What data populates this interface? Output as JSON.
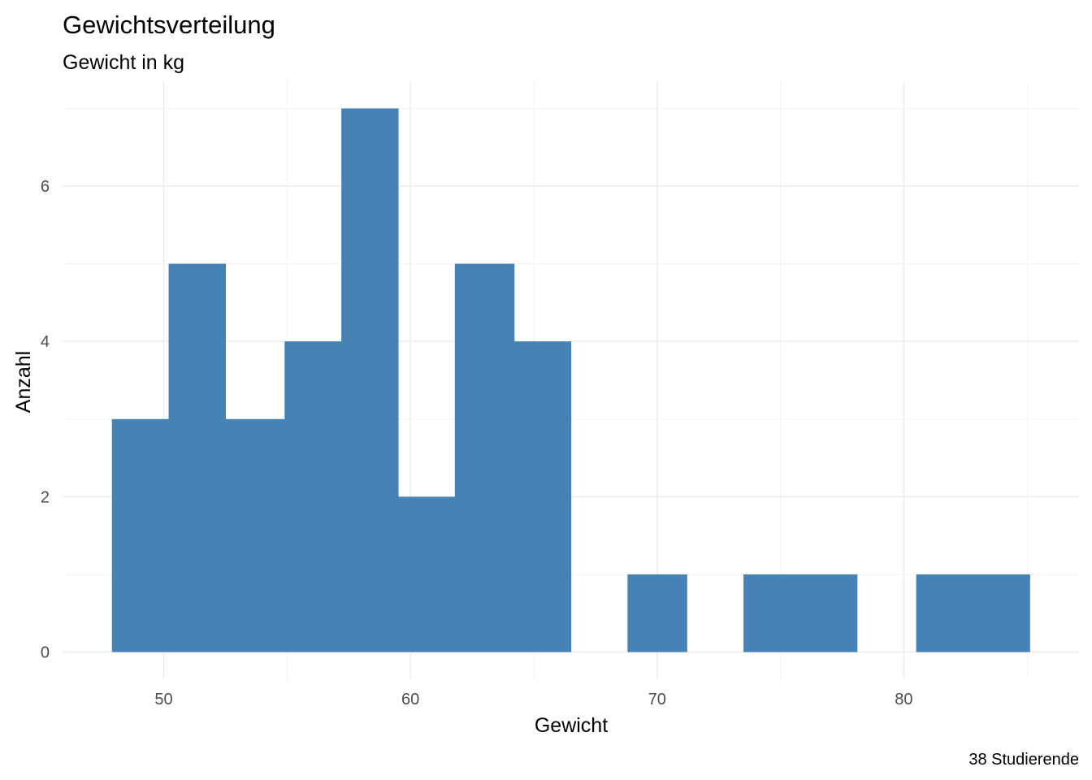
{
  "chart_data": {
    "type": "bar",
    "subtype": "histogram",
    "title": "Gewichtsverteilung",
    "subtitle": "Gewicht in kg",
    "xlabel": "Gewicht",
    "ylabel": "Anzahl",
    "caption": "38 Studierende",
    "bins": [
      {
        "x0": 47.9,
        "x1": 50.2,
        "count": 3
      },
      {
        "x0": 50.2,
        "x1": 52.5,
        "count": 5
      },
      {
        "x0": 52.5,
        "x1": 54.9,
        "count": 3
      },
      {
        "x0": 54.9,
        "x1": 57.2,
        "count": 4
      },
      {
        "x0": 57.2,
        "x1": 59.5,
        "count": 7
      },
      {
        "x0": 59.5,
        "x1": 61.8,
        "count": 2
      },
      {
        "x0": 61.8,
        "x1": 64.2,
        "count": 5
      },
      {
        "x0": 64.2,
        "x1": 66.5,
        "count": 4
      },
      {
        "x0": 66.5,
        "x1": 68.8,
        "count": 0
      },
      {
        "x0": 68.8,
        "x1": 71.2,
        "count": 1
      },
      {
        "x0": 71.2,
        "x1": 73.5,
        "count": 0
      },
      {
        "x0": 73.5,
        "x1": 75.8,
        "count": 1
      },
      {
        "x0": 75.8,
        "x1": 78.1,
        "count": 1
      },
      {
        "x0": 78.1,
        "x1": 80.5,
        "count": 0
      },
      {
        "x0": 80.5,
        "x1": 82.8,
        "count": 1
      },
      {
        "x0": 82.8,
        "x1": 85.1,
        "count": 1
      }
    ],
    "xlim": [
      45.9,
      87.1
    ],
    "ylim": [
      -0.35,
      7.35
    ],
    "x_ticks": [
      50,
      60,
      70,
      80
    ],
    "x_tick_labels": [
      "50",
      "60",
      "70",
      "80"
    ],
    "x_minor_ticks": [
      55,
      65,
      75,
      85
    ],
    "y_ticks": [
      0,
      2,
      4,
      6
    ],
    "y_tick_labels": [
      "0",
      "2",
      "4",
      "6"
    ],
    "y_minor_ticks": [
      1,
      3,
      5,
      7
    ],
    "grid": true,
    "legend": "none",
    "bar_color": "#4682B4",
    "grid_color": "#EBEBEB",
    "background": "#FFFFFF"
  }
}
